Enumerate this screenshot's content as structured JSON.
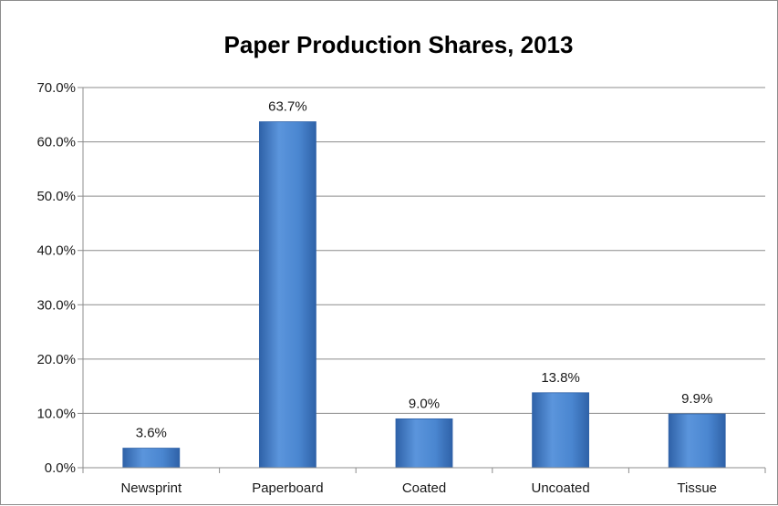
{
  "chart_data": {
    "type": "bar",
    "title": "Paper Production Shares, 2013",
    "xlabel": "",
    "ylabel": "",
    "categories": [
      "Newsprint",
      "Paperboard",
      "Coated",
      "Uncoated",
      "Tissue"
    ],
    "values": [
      3.6,
      63.7,
      9.0,
      13.8,
      9.9
    ],
    "data_labels": [
      "3.6%",
      "63.7%",
      "9.0%",
      "13.8%",
      "9.9%"
    ],
    "ylim": [
      0,
      70
    ],
    "yticks": [
      0,
      10,
      20,
      30,
      40,
      50,
      60,
      70
    ],
    "ytick_labels": [
      "0.0%",
      "10.0%",
      "20.0%",
      "30.0%",
      "40.0%",
      "50.0%",
      "60.0%",
      "70.0%"
    ],
    "grid": true,
    "legend": "none",
    "colors": {
      "bar": "#4a86d0",
      "bar_dark": "#2f62a8",
      "grid": "#8c8c8c",
      "axis": "#8c8c8c"
    }
  }
}
